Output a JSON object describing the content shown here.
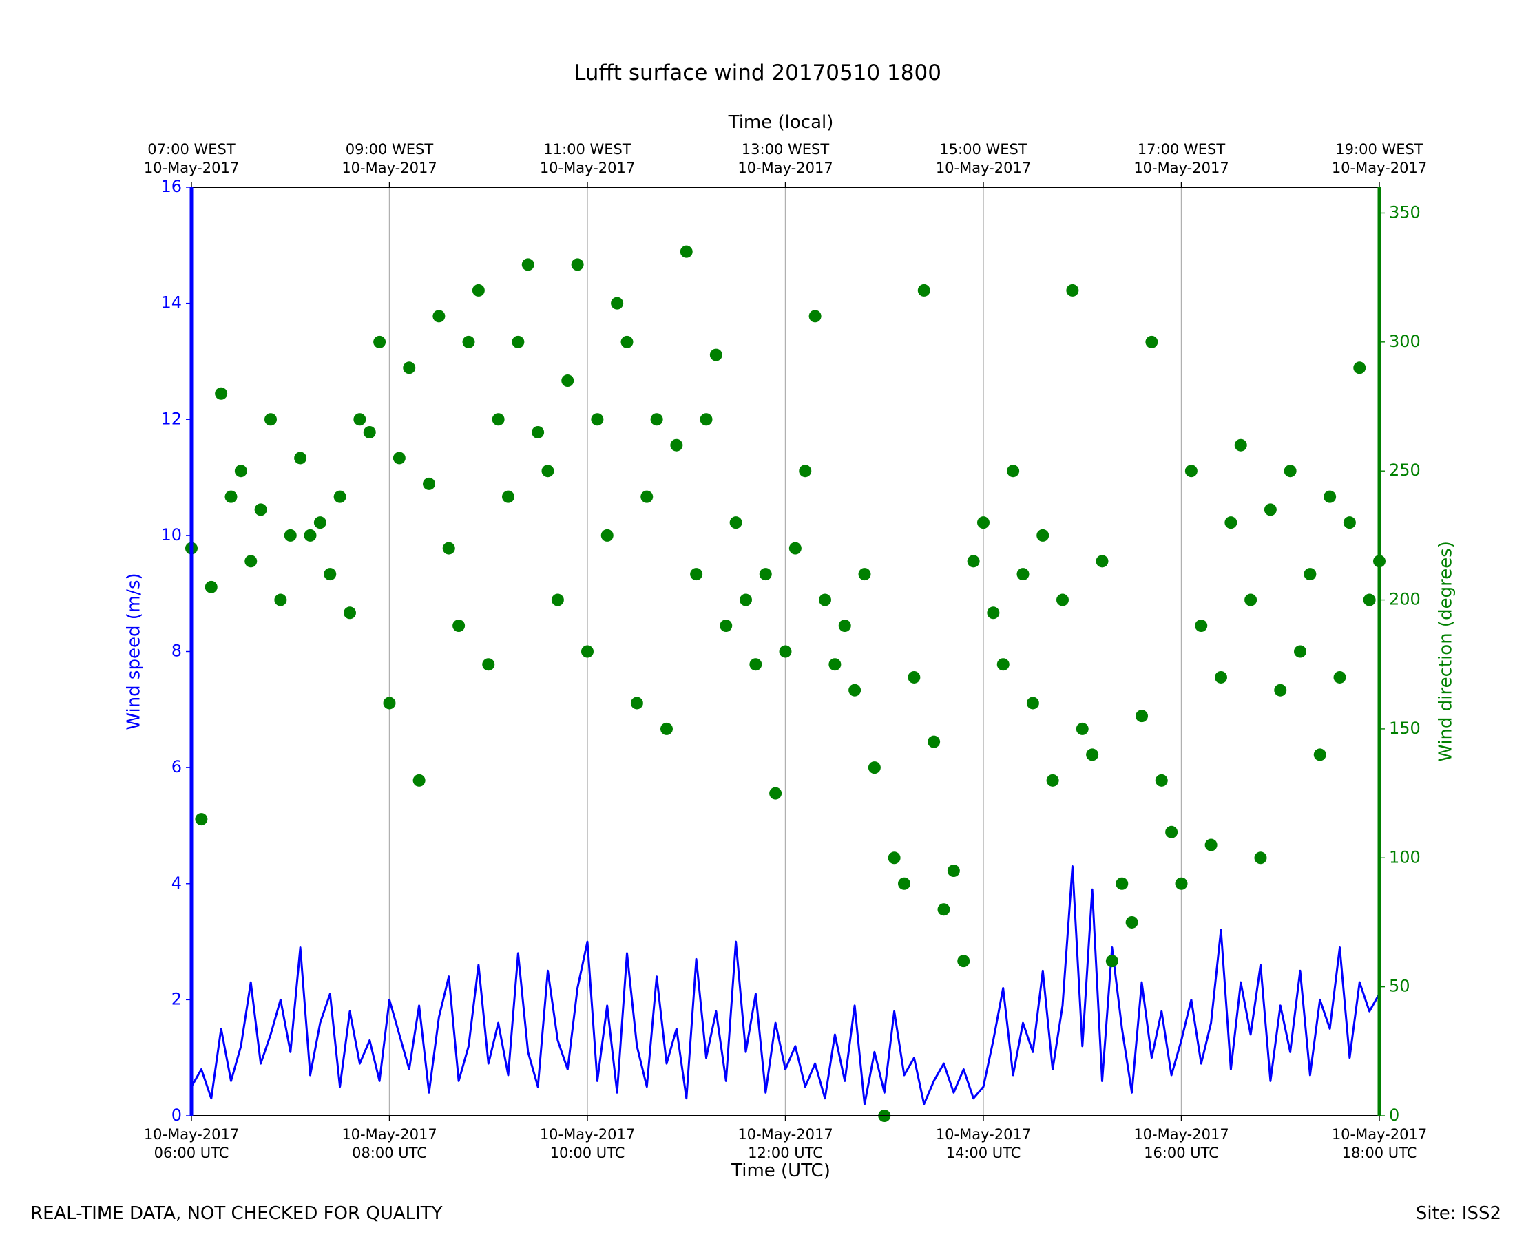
{
  "chart_data": {
    "type": "line-scatter",
    "title": "Lufft surface wind 20170510 1800",
    "xlabel": "Time (UTC)",
    "x2label": "Time (local)",
    "ylabel": "Wind speed (m/s)",
    "y2label": "Wind direction (degrees)",
    "footer_left": "REAL-TIME DATA, NOT CHECKED FOR QUALITY",
    "footer_right": "Site: ISS2",
    "xlim": [
      6,
      18
    ],
    "xticks": [
      {
        "value": 6,
        "label": "10-May-2017\n06:00 UTC"
      },
      {
        "value": 8,
        "label": "10-May-2017\n08:00 UTC"
      },
      {
        "value": 10,
        "label": "10-May-2017\n10:00 UTC"
      },
      {
        "value": 12,
        "label": "10-May-2017\n12:00 UTC"
      },
      {
        "value": 14,
        "label": "10-May-2017\n14:00 UTC"
      },
      {
        "value": 16,
        "label": "10-May-2017\n16:00 UTC"
      },
      {
        "value": 18,
        "label": "10-May-2017\n18:00 UTC"
      }
    ],
    "x2ticks": [
      {
        "value": 6,
        "label": "07:00 WEST\n10-May-2017"
      },
      {
        "value": 8,
        "label": "09:00 WEST\n10-May-2017"
      },
      {
        "value": 10,
        "label": "11:00 WEST\n10-May-2017"
      },
      {
        "value": 12,
        "label": "13:00 WEST\n10-May-2017"
      },
      {
        "value": 14,
        "label": "15:00 WEST\n10-May-2017"
      },
      {
        "value": 16,
        "label": "17:00 WEST\n10-May-2017"
      },
      {
        "value": 18,
        "label": "19:00 WEST\n10-May-2017"
      }
    ],
    "ylim": [
      0,
      16
    ],
    "yticks": [
      0,
      2,
      4,
      6,
      8,
      10,
      12,
      14,
      16
    ],
    "y2lim": [
      0,
      360
    ],
    "y2ticks": [
      0,
      50,
      100,
      150,
      200,
      250,
      300,
      350
    ],
    "grid": true,
    "x": [
      6.0,
      6.1,
      6.2,
      6.3,
      6.4,
      6.5,
      6.6,
      6.7,
      6.8,
      6.9,
      7.0,
      7.1,
      7.2,
      7.3,
      7.4,
      7.5,
      7.6,
      7.7,
      7.8,
      7.9,
      8.0,
      8.1,
      8.2,
      8.3,
      8.4,
      8.5,
      8.6,
      8.7,
      8.8,
      8.9,
      9.0,
      9.1,
      9.2,
      9.3,
      9.4,
      9.5,
      9.6,
      9.7,
      9.8,
      9.9,
      10.0,
      10.1,
      10.2,
      10.3,
      10.4,
      10.5,
      10.6,
      10.7,
      10.8,
      10.9,
      11.0,
      11.1,
      11.2,
      11.3,
      11.4,
      11.5,
      11.6,
      11.7,
      11.8,
      11.9,
      12.0,
      12.1,
      12.2,
      12.3,
      12.4,
      12.5,
      12.6,
      12.7,
      12.8,
      12.9,
      13.0,
      13.1,
      13.2,
      13.3,
      13.4,
      13.5,
      13.6,
      13.7,
      13.8,
      13.9,
      14.0,
      14.1,
      14.2,
      14.3,
      14.4,
      14.5,
      14.6,
      14.7,
      14.8,
      14.9,
      15.0,
      15.1,
      15.2,
      15.3,
      15.4,
      15.5,
      15.6,
      15.7,
      15.8,
      15.9,
      16.0,
      16.1,
      16.2,
      16.3,
      16.4,
      16.5,
      16.6,
      16.7,
      16.8,
      16.9,
      17.0,
      17.1,
      17.2,
      17.3,
      17.4,
      17.5,
      17.6,
      17.7,
      17.8,
      17.9,
      18.0
    ],
    "series": [
      {
        "name": "Wind speed",
        "color": "#0000ff",
        "axis": "y",
        "values": [
          0.5,
          0.8,
          0.3,
          1.5,
          0.6,
          1.2,
          2.3,
          0.9,
          1.4,
          2.0,
          1.1,
          2.9,
          0.7,
          1.6,
          2.1,
          0.5,
          1.8,
          0.9,
          1.3,
          0.6,
          2.0,
          1.4,
          0.8,
          1.9,
          0.4,
          1.7,
          2.4,
          0.6,
          1.2,
          2.6,
          0.9,
          1.6,
          0.7,
          2.8,
          1.1,
          0.5,
          2.5,
          1.3,
          0.8,
          2.2,
          3.0,
          0.6,
          1.9,
          0.4,
          2.8,
          1.2,
          0.5,
          2.4,
          0.9,
          1.5,
          0.3,
          2.7,
          1.0,
          1.8,
          0.6,
          3.0,
          1.1,
          2.1,
          0.4,
          1.6,
          0.8,
          1.2,
          0.5,
          0.9,
          0.3,
          1.4,
          0.6,
          1.9,
          0.2,
          1.1,
          0.4,
          1.8,
          0.7,
          1.0,
          0.2,
          0.6,
          0.9,
          0.4,
          0.8,
          0.3,
          0.5,
          1.3,
          2.2,
          0.7,
          1.6,
          1.1,
          2.5,
          0.8,
          1.9,
          4.3,
          1.2,
          3.9,
          0.6,
          2.9,
          1.5,
          0.4,
          2.3,
          1.0,
          1.8,
          0.7,
          1.3,
          2.0,
          0.9,
          1.6,
          3.2,
          0.8,
          2.3,
          1.4,
          2.6,
          0.6,
          1.9,
          1.1,
          2.5,
          0.7,
          2.0,
          1.5,
          2.9,
          1.0,
          2.3,
          1.8,
          2.1
        ]
      },
      {
        "name": "Wind direction",
        "color": "#008000",
        "axis": "y2",
        "values": [
          220,
          115,
          205,
          280,
          240,
          250,
          215,
          235,
          270,
          200,
          225,
          255,
          225,
          230,
          210,
          240,
          195,
          270,
          265,
          300,
          160,
          255,
          290,
          130,
          245,
          310,
          220,
          190,
          300,
          320,
          175,
          270,
          240,
          300,
          330,
          265,
          250,
          200,
          285,
          330,
          180,
          270,
          225,
          315,
          300,
          160,
          240,
          270,
          150,
          260,
          335,
          210,
          270,
          295,
          190,
          230,
          200,
          175,
          210,
          125,
          180,
          220,
          250,
          310,
          200,
          175,
          190,
          165,
          210,
          135,
          0,
          100,
          90,
          170,
          320,
          145,
          80,
          95,
          60,
          215,
          230,
          195,
          175,
          250,
          210,
          160,
          225,
          130,
          200,
          320,
          150,
          140,
          215,
          60,
          90,
          75,
          155,
          300,
          130,
          110,
          90,
          250,
          190,
          105,
          170,
          230,
          260,
          200,
          100,
          235,
          165,
          250,
          180,
          210,
          140,
          240,
          170,
          230,
          290,
          200,
          215
        ]
      }
    ]
  }
}
